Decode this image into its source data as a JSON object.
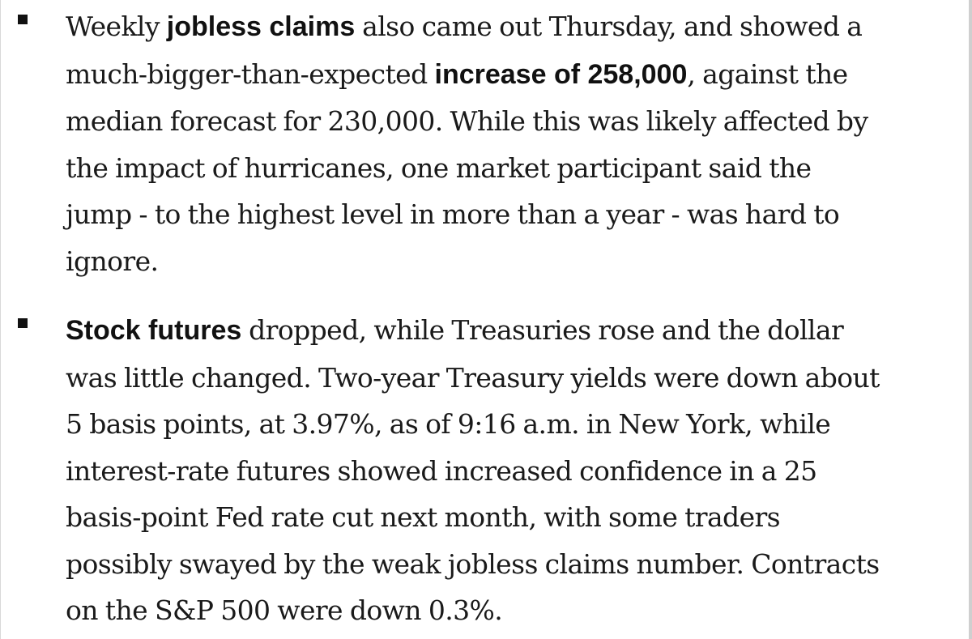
{
  "article": {
    "bullets": [
      {
        "lines": [
          {
            "a": "Weekly ",
            "b": "jobless claims",
            "c": " also came out Thursday, and showed a"
          },
          {
            "a": "much-bigger-than-expected ",
            "b": "increase of 258,000",
            "c": ", against the"
          },
          {
            "a": "median forecast for 230,000. While this was likely affected by"
          },
          {
            "a": "the impact of hurricanes, one market participant said the"
          },
          {
            "a": "jump - to the highest level in more than a year - was hard to"
          },
          {
            "a": "ignore."
          }
        ]
      },
      {
        "lines": [
          {
            "b": "Stock futures",
            "c": " dropped, while Treasuries rose and the dollar"
          },
          {
            "a": "was little changed. Two-year Treasury yields were down about"
          },
          {
            "a": "5 basis points, at 3.97%, as of 9:16 a.m. in New York, while"
          },
          {
            "a": "interest-rate futures showed increased confidence in a 25"
          },
          {
            "a": "basis-point Fed rate cut next month, with some traders"
          },
          {
            "a": "possibly swayed by the weak jobless claims number. Contracts"
          },
          {
            "a": "on the S&P 500 were down 0.3%."
          }
        ]
      }
    ]
  }
}
